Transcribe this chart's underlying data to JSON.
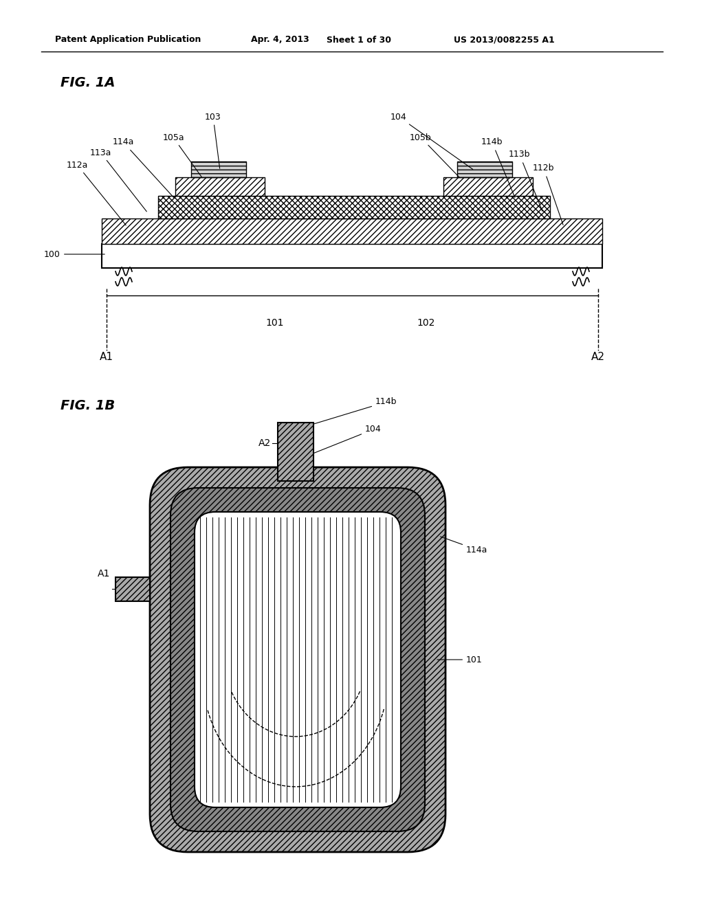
{
  "background_color": "#ffffff",
  "header_text": "Patent Application Publication",
  "header_date": "Apr. 4, 2013",
  "header_sheet": "Sheet 1 of 30",
  "header_patent": "US 2013/0082255 A1",
  "fig1a_label": "FIG. 1A",
  "fig1b_label": "FIG. 1B",
  "text_color": "#000000"
}
